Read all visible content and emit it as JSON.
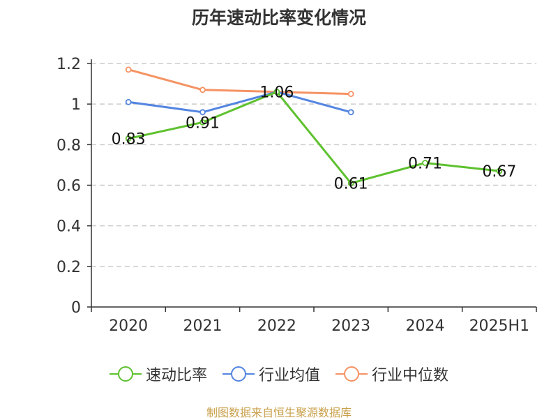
{
  "chart_data": {
    "type": "line",
    "title": "历年速动比率变化情况",
    "categories": [
      "2020",
      "2021",
      "2022",
      "2023",
      "2024",
      "2025H1"
    ],
    "yticks": [
      "0",
      "0.2",
      "0.4",
      "0.6",
      "0.8",
      "1",
      "1.2"
    ],
    "ylim": [
      0,
      1.2
    ],
    "grid": true,
    "legend_position": "bottom",
    "series": [
      {
        "name": "速动比率",
        "color": "#5ec12e",
        "values": [
          0.83,
          0.91,
          1.06,
          0.61,
          0.71,
          0.67
        ],
        "labels": [
          "0.83",
          "0.91",
          "1.06",
          "0.61",
          "0.71",
          "0.67"
        ]
      },
      {
        "name": "行业均值",
        "color": "#5485e0",
        "values": [
          1.01,
          0.96,
          1.06,
          0.96,
          null,
          null
        ]
      },
      {
        "name": "行业中位数",
        "color": "#f59364",
        "values": [
          1.17,
          1.07,
          1.06,
          1.05,
          null,
          null
        ]
      }
    ]
  },
  "source": "制图数据来自恒生聚源数据库"
}
